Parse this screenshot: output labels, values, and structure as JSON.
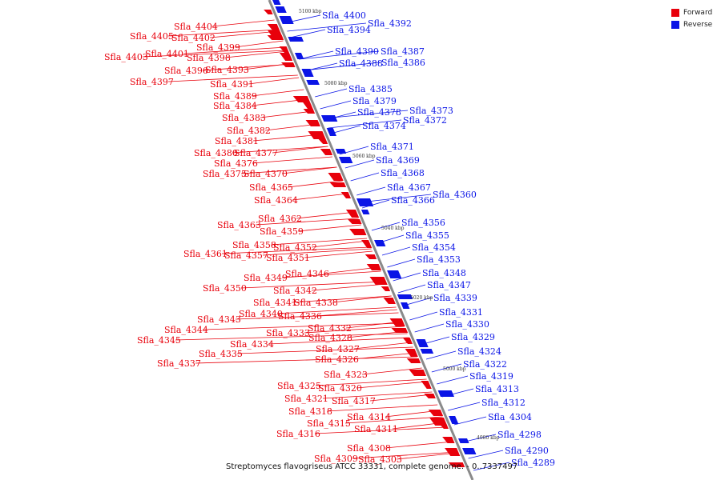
{
  "caption": "Streptomyces flavogriseus ATCC 33331, complete genome. - 0..7337497",
  "legend": [
    {
      "label": "Forward",
      "color": "#e8000b"
    },
    {
      "label": "Reverse",
      "color": "#0a14e6"
    }
  ],
  "colors": {
    "forward": "#e8000b",
    "reverse": "#0a14e6",
    "backbone": "#888888"
  },
  "ticks": [
    "5100 kbp",
    "5080 kbp",
    "5060 kbp",
    "5040 kbp",
    "5020 kbp",
    "5000 kbp",
    "4980 kbp"
  ],
  "left_labels": [
    "Sfla_4404",
    "Sfla_4405",
    "Sfla_4402",
    "Sfla_4401",
    "Sfla_4399",
    "Sfla_4403",
    "Sfla_4398",
    "Sfla_4396",
    "Sfla_4393",
    "Sfla_4397",
    "Sfla_4391",
    "Sfla_4389",
    "Sfla_4384",
    "Sfla_4383",
    "Sfla_4382",
    "Sfla_4381",
    "Sfla_4380",
    "Sfla_4377",
    "Sfla_4376",
    "Sfla_4375",
    "Sfla_4370",
    "Sfla_4365",
    "Sfla_4364",
    "Sfla_4362",
    "Sfla_4363",
    "Sfla_4359",
    "Sfla_4358",
    "Sfla_4352",
    "Sfla_4361",
    "Sfla_4357",
    "Sfla_4351",
    "Sfla_4346",
    "Sfla_4349",
    "Sfla_4350",
    "Sfla_4342",
    "Sfla_4341",
    "Sfla_4338",
    "Sfla_4340",
    "Sfla_4343",
    "Sfla_4336",
    "Sfla_4344",
    "Sfla_4332",
    "Sfla_4345",
    "Sfla_4333",
    "Sfla_4328",
    "Sfla_4334",
    "Sfla_4327",
    "Sfla_4335",
    "Sfla_4326",
    "Sfla_4337",
    "Sfla_4323",
    "Sfla_4325",
    "Sfla_4320",
    "Sfla_4321",
    "Sfla_4317",
    "Sfla_4318",
    "Sfla_4314",
    "Sfla_4315",
    "Sfla_4311",
    "Sfla_4316",
    "Sfla_4308",
    "Sfla_4309",
    "Sfla_4303"
  ],
  "right_labels": [
    "Sfla_4400",
    "Sfla_4392",
    "Sfla_4394",
    "Sfla_4390",
    "Sfla_4387",
    "Sfla_4388",
    "Sfla_4386",
    "Sfla_4385",
    "Sfla_4379",
    "Sfla_4378",
    "Sfla_4373",
    "Sfla_4372",
    "Sfla_4374",
    "Sfla_4371",
    "Sfla_4369",
    "Sfla_4368",
    "Sfla_4367",
    "Sfla_4360",
    "Sfla_4366",
    "Sfla_4356",
    "Sfla_4355",
    "Sfla_4354",
    "Sfla_4353",
    "Sfla_4348",
    "Sfla_4347",
    "Sfla_4339",
    "Sfla_4331",
    "Sfla_4330",
    "Sfla_4329",
    "Sfla_4324",
    "Sfla_4322",
    "Sfla_4319",
    "Sfla_4313",
    "Sfla_4312",
    "Sfla_4304",
    "Sfla_4298",
    "Sfla_4290",
    "Sfla_4289"
  ]
}
